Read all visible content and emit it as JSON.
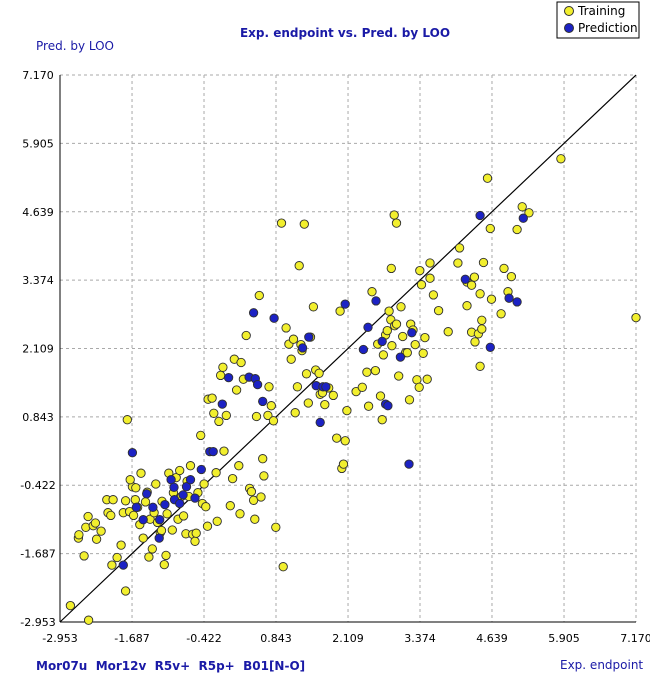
{
  "chart_data": {
    "type": "scatter",
    "title": "Exp. endpoint vs. Pred. by LOO",
    "xlabel": "Exp. endpoint",
    "ylabel": "Pred. by LOO",
    "descriptors": "Mor07u  Mor12v  R5v+  R5p+  B01[N-O]",
    "xlim": [
      -2.953,
      7.17
    ],
    "ylim": [
      -2.953,
      7.17
    ],
    "xticks": [
      "-2.953",
      "-1.687",
      "-0.422",
      "0.843",
      "2.109",
      "3.374",
      "4.639",
      "5.905",
      "7.170"
    ],
    "yticks": [
      "7.170",
      "5.905",
      "4.639",
      "3.374",
      "2.109",
      "0.843",
      "-0.422",
      "-1.687",
      "-2.953"
    ],
    "grid": true,
    "legend_position": "top-right",
    "colors": {
      "training": "#f2ef2e",
      "prediction": "#1c22c4",
      "marker_edge": "#303030",
      "grid": "#a9a9a9",
      "line": "#000000",
      "label_blue": "#1a1aa6"
    },
    "fit_line": [
      [
        -2.953,
        -2.953
      ],
      [
        7.17,
        7.17
      ]
    ],
    "series": [
      {
        "name": "Training",
        "points": [
          [
            -2.77,
            -2.65
          ],
          [
            -2.45,
            -2.92
          ],
          [
            -2.53,
            -1.73
          ],
          [
            -2.63,
            -1.4
          ],
          [
            -2.62,
            -1.34
          ],
          [
            -2.5,
            -1.2
          ],
          [
            -2.46,
            -1.0
          ],
          [
            -2.31,
            -1.42
          ],
          [
            -2.37,
            -1.17
          ],
          [
            -2.33,
            -1.12
          ],
          [
            -2.23,
            -1.27
          ],
          [
            -2.13,
            -0.69
          ],
          [
            -2.11,
            -0.93
          ],
          [
            -2.06,
            -0.98
          ],
          [
            -2.02,
            -0.69
          ],
          [
            -2.04,
            -1.9
          ],
          [
            -1.95,
            -1.76
          ],
          [
            -1.88,
            -1.53
          ],
          [
            -1.84,
            -0.93
          ],
          [
            -1.8,
            -0.71
          ],
          [
            -1.73,
            -0.91
          ],
          [
            -1.68,
            -0.45
          ],
          [
            -1.66,
            -0.98
          ],
          [
            -1.63,
            -0.69
          ],
          [
            -1.59,
            -0.83
          ],
          [
            -1.55,
            -1.15
          ],
          [
            -1.53,
            -0.2
          ],
          [
            -1.49,
            -1.4
          ],
          [
            -1.45,
            -0.73
          ],
          [
            -1.42,
            -0.55
          ],
          [
            -1.39,
            -1.75
          ],
          [
            -1.37,
            -1.05
          ],
          [
            -1.33,
            -1.6
          ],
          [
            -1.3,
            -0.93
          ],
          [
            -1.27,
            -0.4
          ],
          [
            -1.24,
            -1.11
          ],
          [
            -1.19,
            -1.3
          ],
          [
            -1.17,
            -1.26
          ],
          [
            -1.16,
            -0.72
          ],
          [
            -1.12,
            -1.89
          ],
          [
            -1.09,
            -1.72
          ],
          [
            -1.07,
            -0.95
          ],
          [
            -1.04,
            -0.2
          ],
          [
            -0.98,
            -1.25
          ],
          [
            -0.96,
            -0.56
          ],
          [
            -0.91,
            -0.28
          ],
          [
            -0.88,
            -1.05
          ],
          [
            -0.85,
            -0.15
          ],
          [
            -0.82,
            -0.63
          ],
          [
            -0.78,
            -0.99
          ],
          [
            -0.74,
            -1.32
          ],
          [
            -0.72,
            -0.35
          ],
          [
            -0.69,
            -0.63
          ],
          [
            -0.66,
            -0.06
          ],
          [
            -0.62,
            -1.33
          ],
          [
            -0.58,
            -1.46
          ],
          [
            -0.56,
            -1.31
          ],
          [
            -0.53,
            -0.56
          ],
          [
            -0.48,
            0.5
          ],
          [
            -0.45,
            -0.76
          ],
          [
            -0.42,
            -0.4
          ],
          [
            -0.39,
            -0.82
          ],
          [
            -0.36,
            -1.18
          ],
          [
            -1.8,
            -2.38
          ],
          [
            -1.77,
            0.79
          ],
          [
            -1.72,
            -0.32
          ],
          [
            -1.62,
            -0.47
          ],
          [
            -0.35,
            1.17
          ],
          [
            -0.28,
            1.19
          ],
          [
            -0.25,
            0.91
          ],
          [
            -0.21,
            -0.19
          ],
          [
            -0.19,
            -1.09
          ],
          [
            -0.16,
            0.76
          ],
          [
            -0.13,
            1.61
          ],
          [
            -0.09,
            1.76
          ],
          [
            -0.07,
            0.21
          ],
          [
            -0.03,
            0.87
          ],
          [
            0.04,
            -0.8
          ],
          [
            0.08,
            -0.3
          ],
          [
            0.11,
            1.91
          ],
          [
            0.15,
            1.34
          ],
          [
            0.19,
            -0.06
          ],
          [
            0.21,
            -0.95
          ],
          [
            0.23,
            1.85
          ],
          [
            0.27,
            1.54
          ],
          [
            0.32,
            2.35
          ],
          [
            0.38,
            -0.48
          ],
          [
            0.41,
            -0.54
          ],
          [
            0.45,
            -0.7
          ],
          [
            0.47,
            -1.05
          ],
          [
            0.5,
            0.85
          ],
          [
            0.55,
            3.09
          ],
          [
            0.58,
            -0.64
          ],
          [
            0.61,
            0.07
          ],
          [
            0.63,
            -0.25
          ],
          [
            0.7,
            0.87
          ],
          [
            0.72,
            1.4
          ],
          [
            0.76,
            1.05
          ],
          [
            0.8,
            0.77
          ],
          [
            0.84,
            -1.2
          ],
          [
            0.94,
            4.43
          ],
          [
            0.97,
            -1.93
          ],
          [
            1.02,
            2.49
          ],
          [
            1.07,
            2.19
          ],
          [
            1.11,
            1.91
          ],
          [
            1.15,
            2.28
          ],
          [
            1.18,
            0.92
          ],
          [
            1.22,
            1.4
          ],
          [
            1.25,
            3.64
          ],
          [
            1.28,
            2.18
          ],
          [
            1.3,
            2.07
          ],
          [
            1.34,
            4.41
          ],
          [
            1.38,
            1.64
          ],
          [
            1.41,
            1.1
          ],
          [
            1.45,
            2.32
          ],
          [
            1.5,
            2.88
          ],
          [
            1.54,
            1.71
          ],
          [
            1.6,
            1.65
          ],
          [
            1.62,
            1.26
          ],
          [
            1.66,
            1.29
          ],
          [
            1.7,
            1.07
          ],
          [
            1.77,
            1.38
          ],
          [
            1.85,
            1.24
          ],
          [
            1.91,
            0.45
          ],
          [
            1.97,
            2.8
          ],
          [
            2.0,
            -0.11
          ],
          [
            2.03,
            -0.03
          ],
          [
            2.06,
            0.4
          ],
          [
            2.09,
            0.96
          ],
          [
            2.25,
            1.31
          ],
          [
            2.36,
            1.39
          ],
          [
            2.44,
            1.67
          ],
          [
            2.47,
            1.04
          ],
          [
            2.53,
            3.16
          ],
          [
            2.59,
            1.7
          ],
          [
            2.63,
            2.19
          ],
          [
            2.68,
            1.23
          ],
          [
            2.71,
            0.79
          ],
          [
            2.73,
            1.99
          ],
          [
            2.77,
            2.36
          ],
          [
            2.8,
            2.44
          ],
          [
            2.83,
            2.8
          ],
          [
            2.86,
            2.64
          ],
          [
            2.88,
            2.16
          ],
          [
            2.93,
            2.53
          ],
          [
            2.96,
            2.56
          ],
          [
            3.0,
            1.6
          ],
          [
            3.04,
            2.88
          ],
          [
            3.07,
            2.33
          ],
          [
            3.12,
            2.03
          ],
          [
            3.15,
            2.03
          ],
          [
            3.19,
            1.16
          ],
          [
            3.21,
            2.56
          ],
          [
            3.25,
            2.45
          ],
          [
            3.29,
            2.18
          ],
          [
            3.32,
            1.53
          ],
          [
            3.36,
            1.39
          ],
          [
            3.4,
            3.29
          ],
          [
            3.43,
            2.02
          ],
          [
            3.46,
            2.31
          ],
          [
            3.5,
            1.54
          ],
          [
            3.55,
            3.41
          ],
          [
            3.61,
            3.1
          ],
          [
            3.7,
            2.81
          ],
          [
            3.87,
            2.42
          ],
          [
            4.04,
            3.69
          ],
          [
            4.07,
            3.97
          ],
          [
            4.28,
            2.41
          ],
          [
            4.34,
            2.23
          ],
          [
            4.4,
            2.38
          ],
          [
            4.43,
            1.78
          ],
          [
            4.46,
            2.47
          ],
          [
            4.49,
            3.7
          ],
          [
            4.56,
            5.26
          ],
          [
            4.61,
            4.33
          ],
          [
            4.63,
            3.02
          ],
          [
            4.8,
            2.75
          ],
          [
            4.85,
            3.59
          ],
          [
            4.92,
            3.16
          ],
          [
            4.98,
            3.44
          ],
          [
            5.08,
            4.31
          ],
          [
            5.17,
            4.73
          ],
          [
            5.29,
            4.62
          ],
          [
            5.85,
            5.62
          ],
          [
            2.92,
            4.58
          ],
          [
            2.96,
            4.43
          ],
          [
            2.87,
            3.59
          ],
          [
            3.37,
            3.55
          ],
          [
            3.55,
            3.69
          ],
          [
            4.2,
            3.34
          ],
          [
            4.28,
            3.28
          ],
          [
            4.33,
            3.43
          ],
          [
            4.43,
            3.12
          ],
          [
            4.46,
            2.63
          ],
          [
            4.2,
            2.9
          ],
          [
            7.17,
            2.68
          ]
        ]
      },
      {
        "name": "Prediction",
        "points": [
          [
            -1.68,
            0.18
          ],
          [
            -1.84,
            -1.9
          ],
          [
            -1.61,
            -0.83
          ],
          [
            -1.49,
            -1.06
          ],
          [
            -1.43,
            -0.58
          ],
          [
            -1.32,
            -0.83
          ],
          [
            -1.2,
            -1.06
          ],
          [
            -1.21,
            -1.4
          ],
          [
            -1.11,
            -0.78
          ],
          [
            -1.0,
            -0.32
          ],
          [
            -0.95,
            -0.46
          ],
          [
            -0.94,
            -0.69
          ],
          [
            -0.85,
            -0.76
          ],
          [
            -0.79,
            -0.6
          ],
          [
            -0.73,
            -0.45
          ],
          [
            -0.66,
            -0.32
          ],
          [
            -0.58,
            -0.66
          ],
          [
            -0.47,
            -0.13
          ],
          [
            -0.32,
            0.2
          ],
          [
            -0.26,
            0.2
          ],
          [
            -0.1,
            1.08
          ],
          [
            0.01,
            1.57
          ],
          [
            0.37,
            1.58
          ],
          [
            0.45,
            2.77
          ],
          [
            0.48,
            1.55
          ],
          [
            0.52,
            1.44
          ],
          [
            0.61,
            1.13
          ],
          [
            0.81,
            2.67
          ],
          [
            1.31,
            2.12
          ],
          [
            1.42,
            2.32
          ],
          [
            1.55,
            1.42
          ],
          [
            1.62,
            0.74
          ],
          [
            1.67,
            1.4
          ],
          [
            1.72,
            1.4
          ],
          [
            2.06,
            2.93
          ],
          [
            2.38,
            2.09
          ],
          [
            2.46,
            2.5
          ],
          [
            2.6,
            2.99
          ],
          [
            2.71,
            2.24
          ],
          [
            2.77,
            1.08
          ],
          [
            2.81,
            1.05
          ],
          [
            3.03,
            1.95
          ],
          [
            3.18,
            -0.03
          ],
          [
            3.23,
            2.4
          ],
          [
            4.17,
            3.39
          ],
          [
            4.43,
            4.57
          ],
          [
            4.61,
            2.13
          ],
          [
            4.94,
            3.04
          ],
          [
            5.08,
            2.97
          ],
          [
            5.19,
            4.52
          ]
        ]
      }
    ]
  }
}
